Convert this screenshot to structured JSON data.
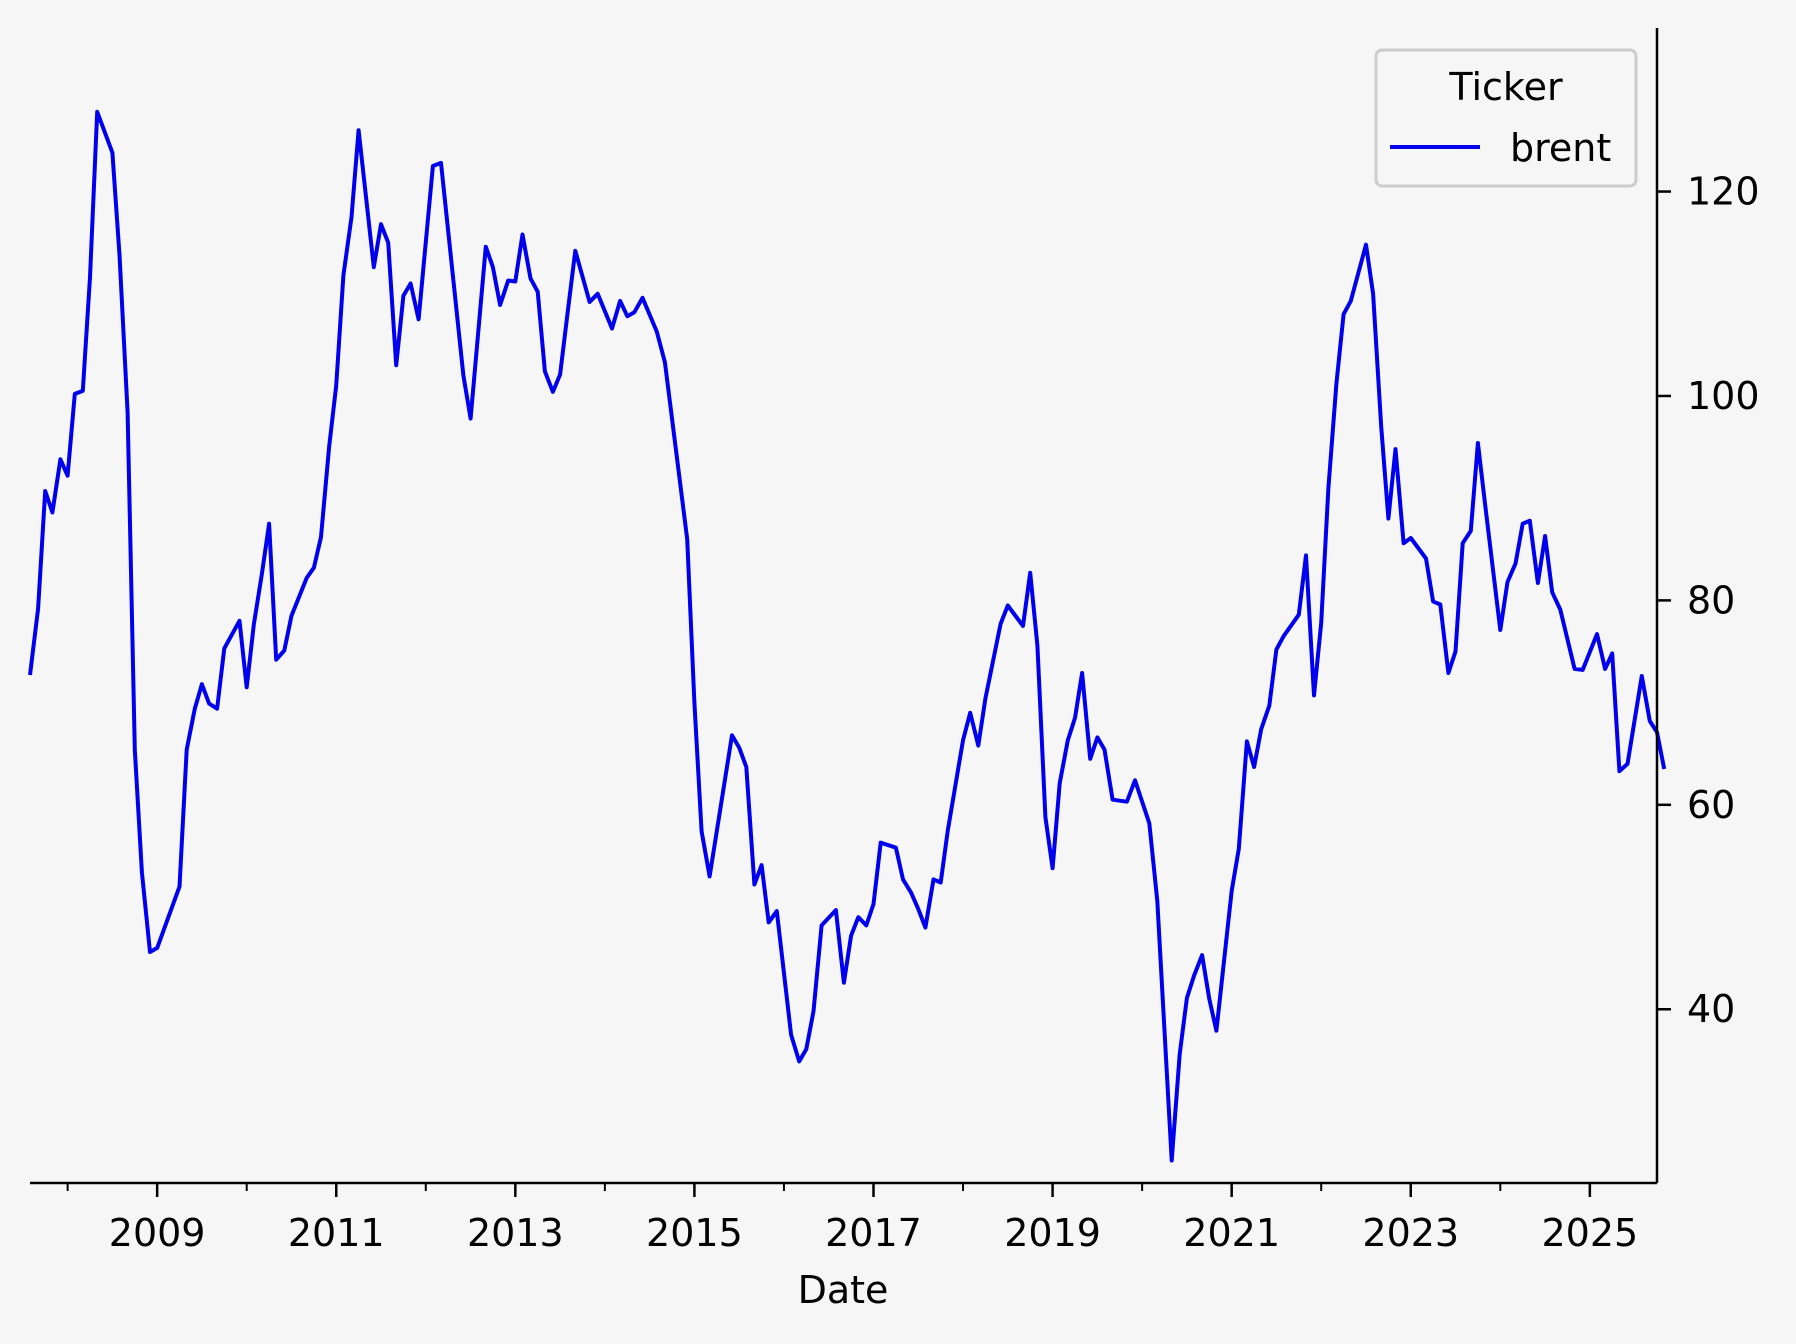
{
  "chart_data": {
    "type": "line",
    "xlabel": "Date",
    "ylabel": "",
    "x_tick_labels": [
      "2009",
      "2011",
      "2013",
      "2015",
      "2017",
      "2019",
      "2021",
      "2023",
      "2025"
    ],
    "y_tick_labels": [
      "40",
      "60",
      "80",
      "100",
      "120"
    ],
    "y_ticks": [
      40,
      60,
      80,
      100,
      120
    ],
    "xlim": [
      2007.58,
      2025.75
    ],
    "ylim": [
      23,
      136
    ],
    "y_axis_side": "right",
    "grid": false,
    "legend": {
      "title": "Ticker",
      "position": "top-right"
    },
    "series": [
      {
        "name": "brent",
        "color": "#0000ee",
        "points": [
          [
            2007.58,
            72.7
          ],
          [
            2007.67,
            79.2
          ],
          [
            2007.75,
            90.7
          ],
          [
            2007.83,
            88.6
          ],
          [
            2007.92,
            93.8
          ],
          [
            2008.0,
            92.2
          ],
          [
            2008.08,
            100.2
          ],
          [
            2008.17,
            100.5
          ],
          [
            2008.25,
            111.6
          ],
          [
            2008.33,
            127.8
          ],
          [
            2008.5,
            123.8
          ],
          [
            2008.58,
            113.8
          ],
          [
            2008.67,
            98.4
          ],
          [
            2008.75,
            65.4
          ],
          [
            2008.83,
            53.4
          ],
          [
            2008.92,
            45.6
          ],
          [
            2009.0,
            46.0
          ],
          [
            2009.25,
            52.0
          ],
          [
            2009.33,
            65.4
          ],
          [
            2009.42,
            69.4
          ],
          [
            2009.5,
            71.8
          ],
          [
            2009.58,
            69.9
          ],
          [
            2009.67,
            69.4
          ],
          [
            2009.75,
            75.3
          ],
          [
            2009.92,
            78.0
          ],
          [
            2010.0,
            71.5
          ],
          [
            2010.08,
            77.7
          ],
          [
            2010.17,
            82.6
          ],
          [
            2010.25,
            87.5
          ],
          [
            2010.33,
            74.2
          ],
          [
            2010.42,
            75.1
          ],
          [
            2010.5,
            78.5
          ],
          [
            2010.67,
            82.2
          ],
          [
            2010.75,
            83.2
          ],
          [
            2010.83,
            86.2
          ],
          [
            2010.92,
            95.0
          ],
          [
            2011.0,
            101.0
          ],
          [
            2011.08,
            111.8
          ],
          [
            2011.17,
            117.5
          ],
          [
            2011.25,
            126.0
          ],
          [
            2011.42,
            112.6
          ],
          [
            2011.5,
            116.8
          ],
          [
            2011.58,
            115.0
          ],
          [
            2011.67,
            103.0
          ],
          [
            2011.75,
            109.8
          ],
          [
            2011.83,
            111.0
          ],
          [
            2011.92,
            107.5
          ],
          [
            2012.08,
            122.5
          ],
          [
            2012.17,
            122.8
          ],
          [
            2012.42,
            102.0
          ],
          [
            2012.5,
            97.8
          ],
          [
            2012.67,
            114.6
          ],
          [
            2012.75,
            112.6
          ],
          [
            2012.83,
            108.9
          ],
          [
            2012.92,
            111.3
          ],
          [
            2013.0,
            111.2
          ],
          [
            2013.08,
            115.8
          ],
          [
            2013.17,
            111.5
          ],
          [
            2013.25,
            110.2
          ],
          [
            2013.33,
            102.4
          ],
          [
            2013.42,
            100.4
          ],
          [
            2013.5,
            102.1
          ],
          [
            2013.58,
            107.9
          ],
          [
            2013.67,
            114.2
          ],
          [
            2013.83,
            109.2
          ],
          [
            2013.92,
            110.0
          ],
          [
            2014.08,
            106.6
          ],
          [
            2014.17,
            109.3
          ],
          [
            2014.25,
            107.8
          ],
          [
            2014.33,
            108.2
          ],
          [
            2014.42,
            109.6
          ],
          [
            2014.58,
            106.3
          ],
          [
            2014.67,
            103.3
          ],
          [
            2014.92,
            86.0
          ],
          [
            2015.0,
            70.0
          ],
          [
            2015.08,
            57.4
          ],
          [
            2015.17,
            53.0
          ],
          [
            2015.42,
            66.8
          ],
          [
            2015.5,
            65.6
          ],
          [
            2015.58,
            63.7
          ],
          [
            2015.67,
            52.2
          ],
          [
            2015.75,
            54.1
          ],
          [
            2015.83,
            48.5
          ],
          [
            2015.92,
            49.6
          ],
          [
            2016.08,
            37.5
          ],
          [
            2016.17,
            34.9
          ],
          [
            2016.25,
            36.1
          ],
          [
            2016.33,
            39.8
          ],
          [
            2016.42,
            48.2
          ],
          [
            2016.58,
            49.7
          ],
          [
            2016.67,
            42.6
          ],
          [
            2016.75,
            47.2
          ],
          [
            2016.83,
            49.0
          ],
          [
            2016.92,
            48.2
          ],
          [
            2017.0,
            50.3
          ],
          [
            2017.08,
            56.3
          ],
          [
            2017.25,
            55.8
          ],
          [
            2017.33,
            52.7
          ],
          [
            2017.42,
            51.4
          ],
          [
            2017.5,
            49.8
          ],
          [
            2017.58,
            48.0
          ],
          [
            2017.67,
            52.7
          ],
          [
            2017.75,
            52.4
          ],
          [
            2017.83,
            57.5
          ],
          [
            2018.0,
            66.3
          ],
          [
            2018.08,
            69.0
          ],
          [
            2018.17,
            65.8
          ],
          [
            2018.25,
            70.4
          ],
          [
            2018.42,
            77.7
          ],
          [
            2018.5,
            79.5
          ],
          [
            2018.67,
            77.5
          ],
          [
            2018.75,
            82.7
          ],
          [
            2018.83,
            75.6
          ],
          [
            2018.92,
            58.8
          ],
          [
            2019.0,
            53.8
          ],
          [
            2019.08,
            62.1
          ],
          [
            2019.17,
            66.3
          ],
          [
            2019.25,
            68.5
          ],
          [
            2019.33,
            72.9
          ],
          [
            2019.42,
            64.5
          ],
          [
            2019.5,
            66.6
          ],
          [
            2019.58,
            65.4
          ],
          [
            2019.67,
            60.5
          ],
          [
            2019.83,
            60.3
          ],
          [
            2019.92,
            62.4
          ],
          [
            2020.08,
            58.2
          ],
          [
            2020.17,
            50.6
          ],
          [
            2020.33,
            25.2
          ],
          [
            2020.42,
            35.6
          ],
          [
            2020.5,
            41.1
          ],
          [
            2020.58,
            43.3
          ],
          [
            2020.67,
            45.3
          ],
          [
            2020.75,
            41.0
          ],
          [
            2020.83,
            37.9
          ],
          [
            2021.0,
            51.6
          ],
          [
            2021.08,
            55.7
          ],
          [
            2021.17,
            66.2
          ],
          [
            2021.25,
            63.7
          ],
          [
            2021.33,
            67.4
          ],
          [
            2021.42,
            69.7
          ],
          [
            2021.5,
            75.2
          ],
          [
            2021.58,
            76.5
          ],
          [
            2021.75,
            78.6
          ],
          [
            2021.83,
            84.4
          ],
          [
            2021.92,
            70.7
          ],
          [
            2022.0,
            77.8
          ],
          [
            2022.08,
            91.0
          ],
          [
            2022.17,
            101.2
          ],
          [
            2022.25,
            108.0
          ],
          [
            2022.33,
            109.3
          ],
          [
            2022.5,
            114.8
          ],
          [
            2022.58,
            110.0
          ],
          [
            2022.67,
            97.0
          ],
          [
            2022.75,
            88.0
          ],
          [
            2022.83,
            94.8
          ],
          [
            2022.92,
            85.6
          ],
          [
            2023.0,
            86.1
          ],
          [
            2023.17,
            84.1
          ],
          [
            2023.25,
            79.9
          ],
          [
            2023.33,
            79.6
          ],
          [
            2023.42,
            72.9
          ],
          [
            2023.5,
            75.0
          ],
          [
            2023.58,
            85.6
          ],
          [
            2023.67,
            86.8
          ],
          [
            2023.75,
            95.4
          ],
          [
            2023.83,
            89.4
          ],
          [
            2024.0,
            77.1
          ],
          [
            2024.08,
            81.8
          ],
          [
            2024.17,
            83.6
          ],
          [
            2024.25,
            87.5
          ],
          [
            2024.33,
            87.8
          ],
          [
            2024.42,
            81.7
          ],
          [
            2024.5,
            86.3
          ],
          [
            2024.58,
            80.8
          ],
          [
            2024.67,
            79.1
          ],
          [
            2024.83,
            73.3
          ],
          [
            2024.92,
            73.2
          ],
          [
            2025.08,
            76.7
          ],
          [
            2025.17,
            73.3
          ],
          [
            2025.25,
            74.8
          ],
          [
            2025.33,
            63.3
          ],
          [
            2025.42,
            64.0
          ],
          [
            2025.58,
            72.6
          ],
          [
            2025.67,
            68.2
          ],
          [
            2025.75,
            67.1
          ],
          [
            2025.83,
            63.5
          ]
        ]
      }
    ]
  }
}
